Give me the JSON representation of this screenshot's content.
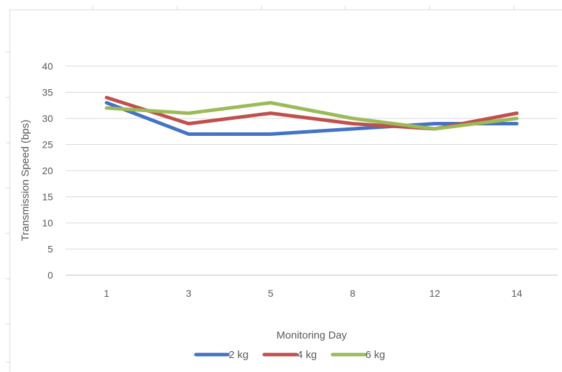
{
  "chart_data": {
    "type": "line",
    "categories": [
      "1",
      "3",
      "5",
      "8",
      "12",
      "14"
    ],
    "series": [
      {
        "name": "2 kg",
        "color": "#4472C4",
        "values": [
          33,
          27,
          27,
          28,
          29,
          29
        ]
      },
      {
        "name": "4 kg",
        "color": "#C0504D",
        "values": [
          34,
          29,
          31,
          29,
          28,
          31
        ]
      },
      {
        "name": "6 kg",
        "color": "#9BBB59",
        "values": [
          32,
          31,
          33,
          30,
          28,
          30
        ]
      }
    ],
    "xlabel": "Monitoring Day",
    "ylabel": "Transmission Speed (bps)",
    "ylim": [
      0,
      40
    ],
    "yticks": [
      0,
      5,
      10,
      15,
      20,
      25,
      30,
      35,
      40
    ],
    "grid": true,
    "legend_position": "bottom"
  }
}
